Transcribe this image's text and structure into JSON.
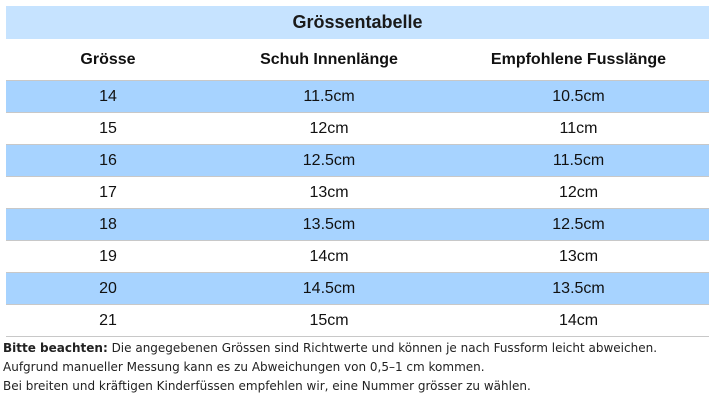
{
  "title": "Grössentabelle",
  "headers": [
    "Grösse",
    "Schuh Innenlänge",
    "Empfohlene Fusslänge"
  ],
  "rows": [
    [
      "14",
      "11.5cm",
      "10.5cm"
    ],
    [
      "15",
      "12cm",
      "11cm"
    ],
    [
      "16",
      "12.5cm",
      "11.5cm"
    ],
    [
      "17",
      "13cm",
      "12cm"
    ],
    [
      "18",
      "13.5cm",
      "12.5cm"
    ],
    [
      "19",
      "14cm",
      "13cm"
    ],
    [
      "20",
      "14.5cm",
      "13.5cm"
    ],
    [
      "21",
      "15cm",
      "14cm"
    ]
  ],
  "notes": {
    "label": "Bitte beachten:",
    "line1": " Die angegebenen Grössen sind Richtwerte und können je nach Fussform leicht abweichen.",
    "line2": "Aufgrund manueller Messung kann es zu Abweichungen von 0,5–1 cm kommen.",
    "line3": "Bei breiten und kräftigen Kinderfüssen empfehlen wir, eine Nummer grösser zu wählen."
  },
  "colors": {
    "header_bg": "#c6e3ff",
    "row_shade": "#a7d3ff"
  }
}
